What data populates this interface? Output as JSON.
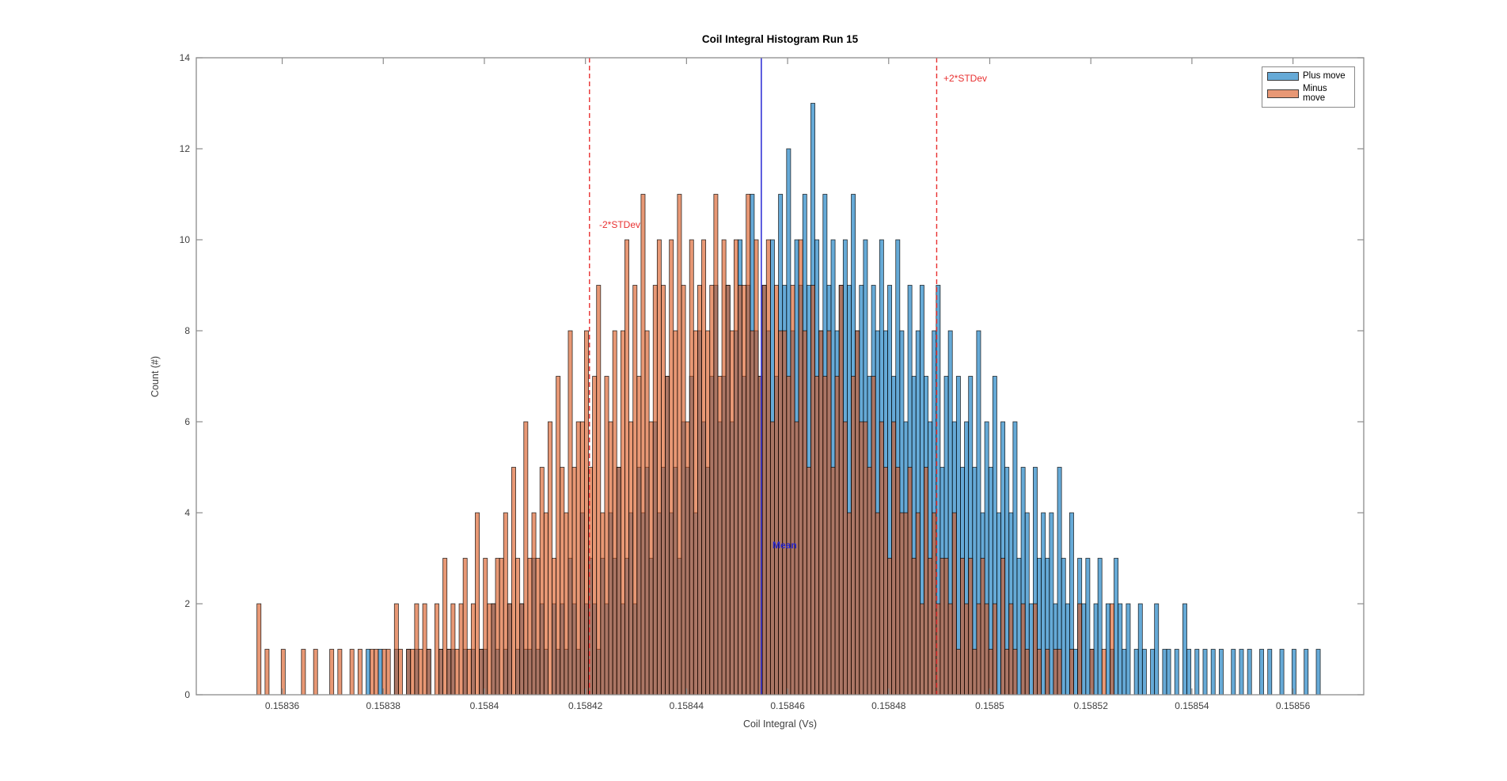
{
  "title": "Coil Integral Histogram Run 15",
  "xlabel": "Coil Integral (Vs)",
  "ylabel": "Count (#)",
  "legend": {
    "items": [
      {
        "label": "Plus move",
        "color": "#0072BD",
        "alpha": 0.6
      },
      {
        "label": "Minus move",
        "color": "#D95319",
        "alpha": 0.6
      }
    ]
  },
  "colors": {
    "axes_box": "#8c8c8c",
    "tick_label": "#3f3f3f",
    "mean_line": "#3434d6",
    "mean_label": "#2727cf",
    "stdev_line": "#e83030",
    "stdev_label": "#e83030",
    "bar_edge": "#000000"
  },
  "chart_data": {
    "type": "bar",
    "subtype": "overlaid-histogram",
    "title": "Coil Integral Histogram Run 15",
    "xlabel": "Coil Integral (Vs)",
    "ylabel": "Count (#)",
    "xlim": [
      0.158343,
      0.158574
    ],
    "ylim": [
      0,
      14
    ],
    "grid": false,
    "legend_position": "top-right-inside",
    "x_ticks": [
      0.15836,
      0.15838,
      0.1584,
      0.15842,
      0.15844,
      0.15846,
      0.15848,
      0.1585,
      0.15852,
      0.15854,
      0.15856
    ],
    "x_tick_labels": [
      "0.15836",
      "0.15838",
      "0.1584",
      "0.15842",
      "0.15844",
      "0.15846",
      "0.15848",
      "0.1585",
      "0.15852",
      "0.15854",
      "0.15856"
    ],
    "y_ticks": [
      0,
      2,
      4,
      6,
      8,
      10,
      12,
      14
    ],
    "y_tick_labels": [
      "0",
      "2",
      "4",
      "6",
      "8",
      "10",
      "12",
      "14"
    ],
    "bin_width": 8e-07,
    "series": [
      {
        "name": "Plus move",
        "color": "#0072BD",
        "face_alpha": 0.6,
        "bin_start": 0.158375,
        "counts": [
          0,
          0,
          1,
          0,
          0,
          1,
          0,
          0,
          0,
          1,
          0,
          0,
          1,
          0,
          1,
          0,
          0,
          1,
          0,
          0,
          1,
          0,
          1,
          1,
          0,
          0,
          1,
          0,
          1,
          0,
          1,
          1,
          0,
          2,
          1,
          0,
          1,
          2,
          0,
          1,
          2,
          1,
          1,
          3,
          1,
          2,
          1,
          0,
          2,
          1,
          2,
          1,
          3,
          2,
          1,
          4,
          2,
          3,
          2,
          1,
          3,
          2,
          4,
          3,
          5,
          2,
          3,
          4,
          2,
          5,
          4,
          5,
          3,
          6,
          4,
          5,
          7,
          4,
          5,
          3,
          6,
          5,
          7,
          4,
          8,
          6,
          5,
          7,
          9,
          6,
          7,
          9,
          6,
          8,
          10,
          7,
          9,
          11,
          8,
          7,
          9,
          8,
          10,
          7,
          11,
          9,
          12,
          8,
          10,
          9,
          11,
          9,
          13,
          10,
          8,
          11,
          9,
          10,
          8,
          9,
          10,
          9,
          11,
          8,
          9,
          10,
          7,
          9,
          8,
          10,
          8,
          9,
          7,
          10,
          8,
          6,
          9,
          7,
          8,
          9,
          7,
          6,
          8,
          9,
          5,
          7,
          8,
          6,
          7,
          5,
          6,
          7,
          5,
          8,
          4,
          6,
          5,
          7,
          4,
          6,
          5,
          4,
          6,
          3,
          5,
          4,
          2,
          5,
          3,
          4,
          3,
          4,
          2,
          5,
          3,
          2,
          4,
          1,
          3,
          2,
          3,
          1,
          2,
          3,
          0,
          2,
          1,
          3,
          2,
          1,
          2,
          0,
          1,
          2,
          1,
          0,
          1,
          2,
          0,
          1,
          1,
          0,
          1,
          0,
          2,
          1,
          0,
          1,
          0,
          1,
          0,
          1,
          0,
          1,
          0,
          0,
          1,
          0,
          1,
          0,
          1,
          0,
          0,
          1,
          0,
          1,
          0,
          0,
          1,
          0,
          0,
          1,
          0,
          0,
          1,
          0,
          0,
          1,
          0,
          0
        ]
      },
      {
        "name": "Minus move",
        "color": "#D95319",
        "face_alpha": 0.6,
        "bin_start": 0.158355,
        "counts": [
          2,
          0,
          1,
          0,
          0,
          0,
          1,
          0,
          0,
          0,
          0,
          1,
          0,
          0,
          1,
          0,
          0,
          0,
          1,
          0,
          1,
          0,
          0,
          1,
          0,
          1,
          0,
          0,
          1,
          1,
          0,
          1,
          1,
          0,
          2,
          1,
          0,
          1,
          1,
          2,
          1,
          2,
          1,
          0,
          2,
          1,
          3,
          1,
          2,
          1,
          2,
          3,
          1,
          2,
          4,
          1,
          3,
          2,
          2,
          3,
          3,
          4,
          2,
          5,
          3,
          2,
          6,
          3,
          4,
          3,
          5,
          4,
          6,
          3,
          7,
          5,
          4,
          8,
          5,
          6,
          6,
          8,
          5,
          7,
          9,
          4,
          7,
          6,
          8,
          5,
          8,
          10,
          6,
          9,
          7,
          11,
          8,
          6,
          9,
          10,
          9,
          7,
          10,
          8,
          11,
          9,
          6,
          10,
          8,
          9,
          10,
          8,
          9,
          11,
          7,
          10,
          9,
          8,
          10,
          9,
          9,
          11,
          8,
          10,
          7,
          9,
          10,
          6,
          9,
          8,
          8,
          7,
          9,
          6,
          10,
          8,
          5,
          9,
          7,
          8,
          7,
          8,
          5,
          7,
          9,
          6,
          4,
          7,
          8,
          6,
          6,
          5,
          7,
          4,
          6,
          5,
          3,
          6,
          5,
          4,
          4,
          5,
          3,
          4,
          2,
          5,
          3,
          4,
          2,
          3,
          3,
          2,
          4,
          1,
          3,
          2,
          3,
          1,
          2,
          3,
          2,
          1,
          2,
          0,
          3,
          1,
          2,
          1,
          0,
          2,
          1,
          0,
          2,
          1,
          0,
          1,
          0,
          1,
          1,
          0,
          0,
          1,
          0,
          2,
          0,
          0,
          1,
          0,
          0,
          1,
          0,
          2
        ]
      }
    ],
    "mean_line": {
      "x": 0.1584548,
      "label": "Mean",
      "color": "#3434d6"
    },
    "stdev_lines": [
      {
        "x": 0.1584208,
        "label": "-2*STDev"
      },
      {
        "x": 0.1584895,
        "label": "+2*STDev"
      }
    ],
    "stdev_color": "#e83030"
  }
}
